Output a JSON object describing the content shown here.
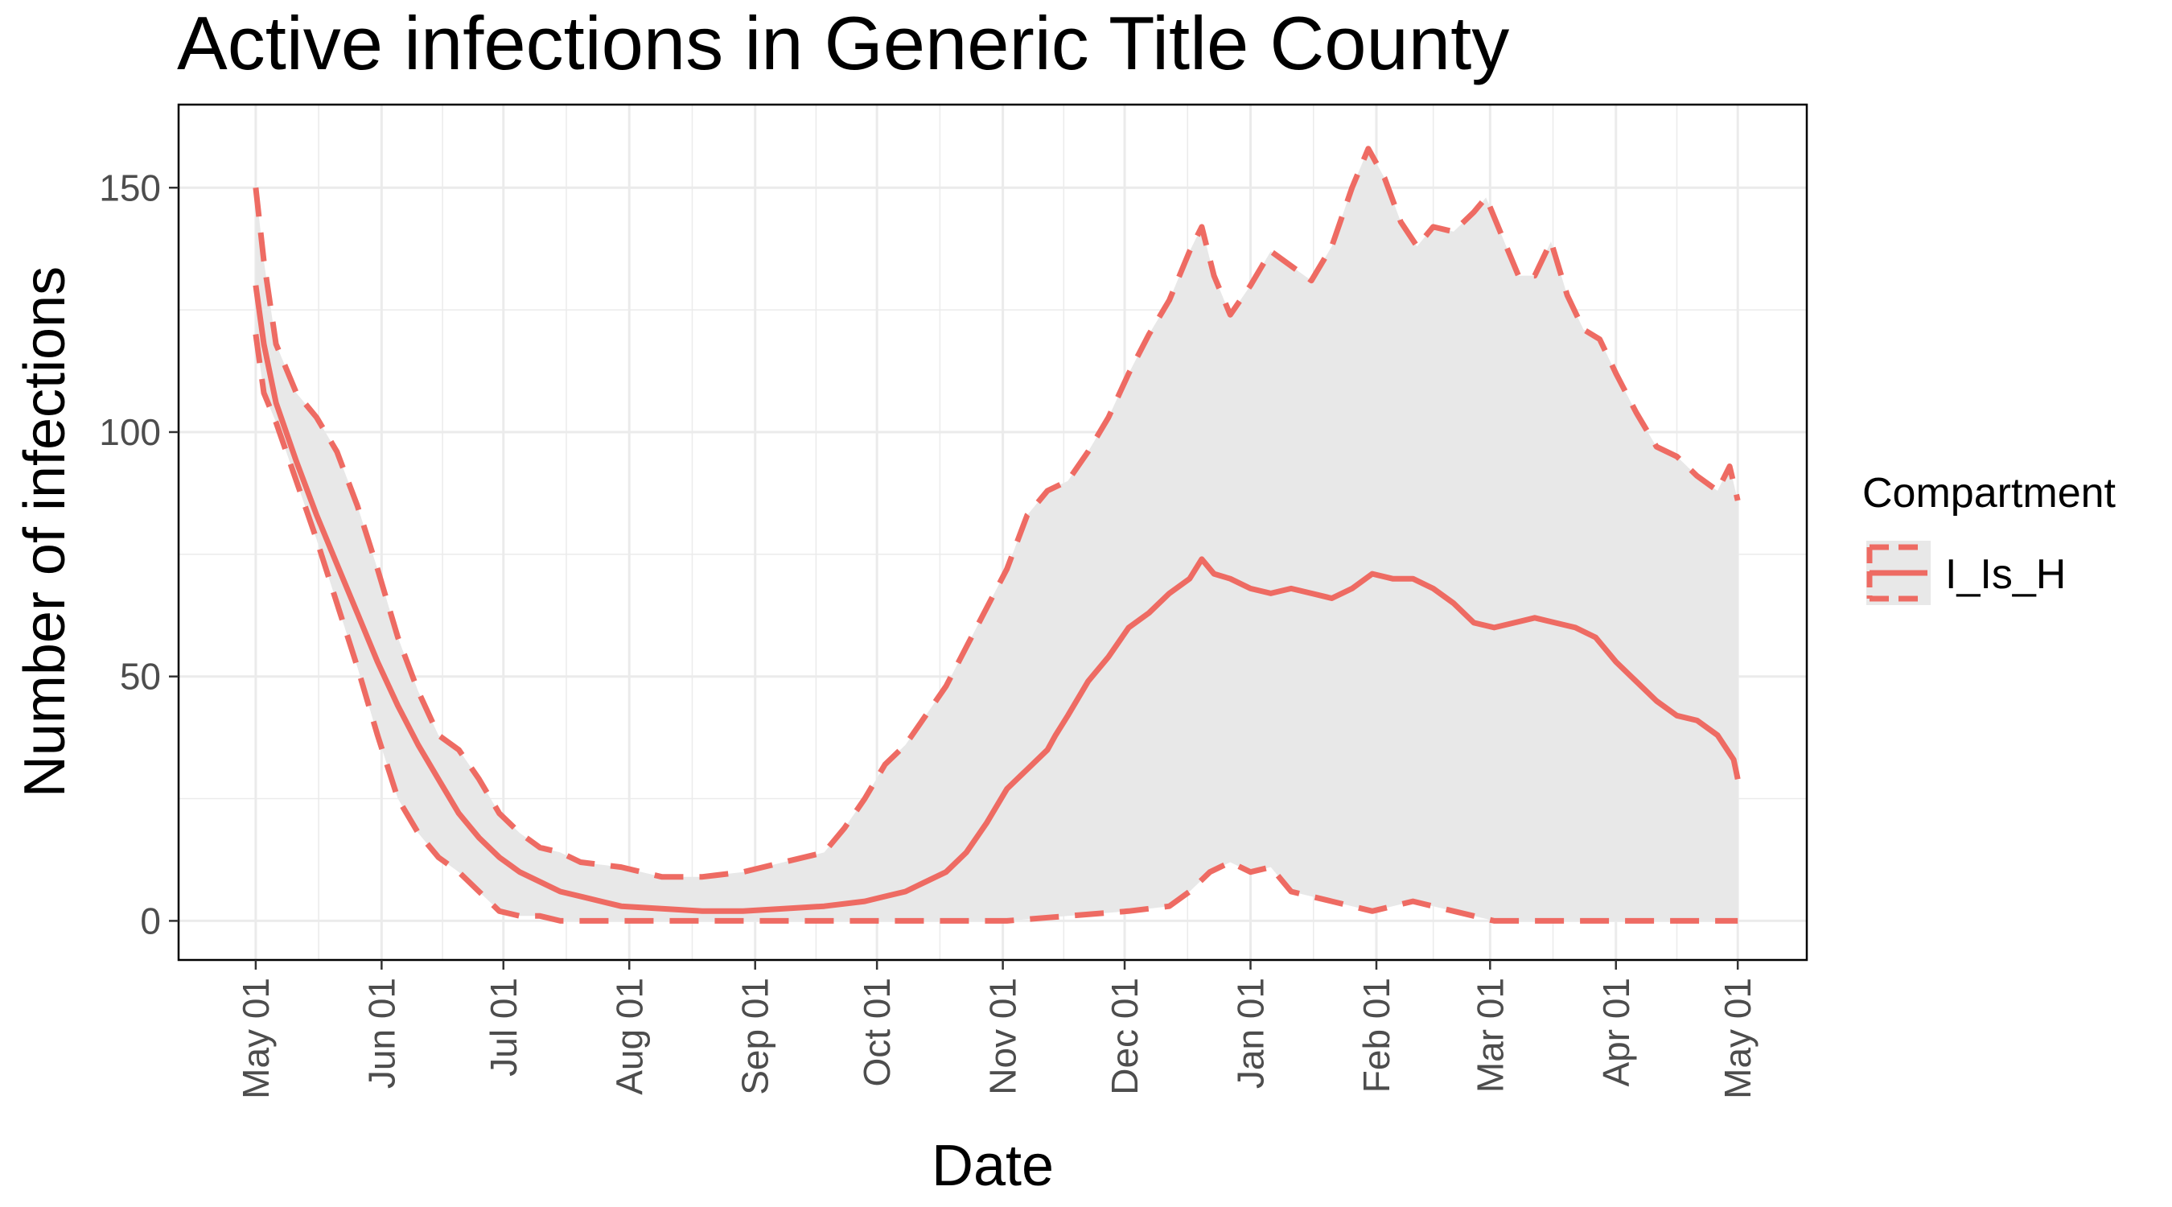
{
  "chart_data": {
    "type": "line",
    "title": "Active infections in Generic Title County",
    "xlabel": "Date",
    "ylabel": "Number of infections",
    "ylim": [
      -8,
      167
    ],
    "y_ticks": [
      0,
      50,
      100,
      150
    ],
    "x_tick_labels": [
      "May 01",
      "Jun 01",
      "Jul 01",
      "Aug 01",
      "Sep 01",
      "Oct 01",
      "Nov 01",
      "Dec 01",
      "Jan 01",
      "Feb 01",
      "Mar 01",
      "Apr 01",
      "May 01"
    ],
    "x_tick_days": [
      0,
      31,
      61,
      92,
      123,
      153,
      184,
      214,
      245,
      276,
      304,
      335,
      365
    ],
    "xlim_days": [
      -19,
      382
    ],
    "grid": true,
    "legend": {
      "title": "Compartment",
      "entries": [
        "I_Is_H"
      ],
      "placement": "right"
    },
    "colors": {
      "series": "#ee6b63",
      "ribbon": "#e8e8e8",
      "grid": "#ebebeb",
      "axis_text": "#4d4d4d"
    },
    "series": [
      {
        "name": "I_Is_H",
        "role": "median",
        "points": [
          [
            0,
            130
          ],
          [
            2,
            118
          ],
          [
            5,
            106
          ],
          [
            10,
            94
          ],
          [
            15,
            83
          ],
          [
            20,
            73
          ],
          [
            25,
            63
          ],
          [
            30,
            53
          ],
          [
            35,
            44
          ],
          [
            40,
            36
          ],
          [
            45,
            29
          ],
          [
            50,
            22
          ],
          [
            55,
            17
          ],
          [
            60,
            13
          ],
          [
            65,
            10
          ],
          [
            70,
            8
          ],
          [
            75,
            6
          ],
          [
            80,
            5
          ],
          [
            85,
            4
          ],
          [
            90,
            3
          ],
          [
            100,
            2.5
          ],
          [
            110,
            2
          ],
          [
            120,
            2
          ],
          [
            130,
            2.5
          ],
          [
            140,
            3
          ],
          [
            150,
            4
          ],
          [
            155,
            5
          ],
          [
            160,
            6
          ],
          [
            165,
            8
          ],
          [
            170,
            10
          ],
          [
            175,
            14
          ],
          [
            180,
            20
          ],
          [
            185,
            27
          ],
          [
            190,
            31
          ],
          [
            195,
            35
          ],
          [
            197,
            38
          ],
          [
            200,
            42
          ],
          [
            205,
            49
          ],
          [
            210,
            54
          ],
          [
            215,
            60
          ],
          [
            220,
            63
          ],
          [
            225,
            67
          ],
          [
            230,
            70
          ],
          [
            233,
            74
          ],
          [
            236,
            71
          ],
          [
            240,
            70
          ],
          [
            245,
            68
          ],
          [
            250,
            67
          ],
          [
            255,
            68
          ],
          [
            260,
            67
          ],
          [
            265,
            66
          ],
          [
            270,
            68
          ],
          [
            275,
            71
          ],
          [
            280,
            70
          ],
          [
            285,
            70
          ],
          [
            290,
            68
          ],
          [
            295,
            65
          ],
          [
            300,
            61
          ],
          [
            305,
            60
          ],
          [
            310,
            61
          ],
          [
            315,
            62
          ],
          [
            320,
            61
          ],
          [
            325,
            60
          ],
          [
            330,
            58
          ],
          [
            335,
            53
          ],
          [
            340,
            49
          ],
          [
            345,
            45
          ],
          [
            350,
            42
          ],
          [
            355,
            41
          ],
          [
            360,
            38
          ],
          [
            364,
            33
          ],
          [
            365,
            29
          ]
        ]
      },
      {
        "name": "I_Is_H",
        "role": "upper",
        "points": [
          [
            0,
            150
          ],
          [
            2,
            135
          ],
          [
            5,
            118
          ],
          [
            10,
            108
          ],
          [
            15,
            103
          ],
          [
            20,
            96
          ],
          [
            25,
            85
          ],
          [
            30,
            72
          ],
          [
            35,
            58
          ],
          [
            40,
            47
          ],
          [
            45,
            38
          ],
          [
            50,
            35
          ],
          [
            55,
            29
          ],
          [
            60,
            22
          ],
          [
            65,
            18
          ],
          [
            70,
            15
          ],
          [
            75,
            14
          ],
          [
            80,
            12
          ],
          [
            90,
            11
          ],
          [
            100,
            9
          ],
          [
            110,
            9
          ],
          [
            120,
            10
          ],
          [
            130,
            12
          ],
          [
            140,
            14
          ],
          [
            145,
            19
          ],
          [
            150,
            25
          ],
          [
            155,
            32
          ],
          [
            160,
            36
          ],
          [
            165,
            42
          ],
          [
            170,
            48
          ],
          [
            175,
            56
          ],
          [
            180,
            64
          ],
          [
            185,
            72
          ],
          [
            190,
            83
          ],
          [
            195,
            88
          ],
          [
            200,
            90
          ],
          [
            205,
            96
          ],
          [
            210,
            103
          ],
          [
            215,
            112
          ],
          [
            220,
            120
          ],
          [
            225,
            127
          ],
          [
            230,
            137
          ],
          [
            233,
            142
          ],
          [
            236,
            132
          ],
          [
            240,
            124
          ],
          [
            245,
            130
          ],
          [
            250,
            137
          ],
          [
            255,
            134
          ],
          [
            260,
            131
          ],
          [
            265,
            138
          ],
          [
            270,
            150
          ],
          [
            274,
            158
          ],
          [
            278,
            152
          ],
          [
            282,
            143
          ],
          [
            286,
            138
          ],
          [
            290,
            142
          ],
          [
            295,
            141
          ],
          [
            300,
            145
          ],
          [
            303,
            148
          ],
          [
            307,
            140
          ],
          [
            311,
            132
          ],
          [
            315,
            132
          ],
          [
            319,
            139
          ],
          [
            323,
            128
          ],
          [
            327,
            121
          ],
          [
            331,
            119
          ],
          [
            335,
            112
          ],
          [
            340,
            104
          ],
          [
            345,
            97
          ],
          [
            350,
            95
          ],
          [
            355,
            91
          ],
          [
            360,
            88
          ],
          [
            363,
            93
          ],
          [
            365,
            86
          ]
        ]
      },
      {
        "name": "I_Is_H",
        "role": "lower",
        "points": [
          [
            0,
            120
          ],
          [
            2,
            108
          ],
          [
            5,
            102
          ],
          [
            10,
            90
          ],
          [
            15,
            78
          ],
          [
            20,
            65
          ],
          [
            25,
            52
          ],
          [
            30,
            38
          ],
          [
            35,
            25
          ],
          [
            40,
            18
          ],
          [
            45,
            13
          ],
          [
            50,
            10
          ],
          [
            55,
            6
          ],
          [
            60,
            2
          ],
          [
            65,
            1
          ],
          [
            70,
            1
          ],
          [
            75,
            0
          ],
          [
            100,
            0
          ],
          [
            150,
            0
          ],
          [
            185,
            0
          ],
          [
            200,
            1
          ],
          [
            215,
            2
          ],
          [
            225,
            3
          ],
          [
            230,
            6
          ],
          [
            235,
            10
          ],
          [
            240,
            12
          ],
          [
            245,
            10
          ],
          [
            250,
            11
          ],
          [
            255,
            6
          ],
          [
            260,
            5
          ],
          [
            265,
            4
          ],
          [
            270,
            3
          ],
          [
            275,
            2
          ],
          [
            280,
            3
          ],
          [
            285,
            4
          ],
          [
            290,
            3
          ],
          [
            295,
            2
          ],
          [
            300,
            1
          ],
          [
            305,
            0
          ],
          [
            330,
            0
          ],
          [
            365,
            0
          ]
        ]
      }
    ]
  }
}
